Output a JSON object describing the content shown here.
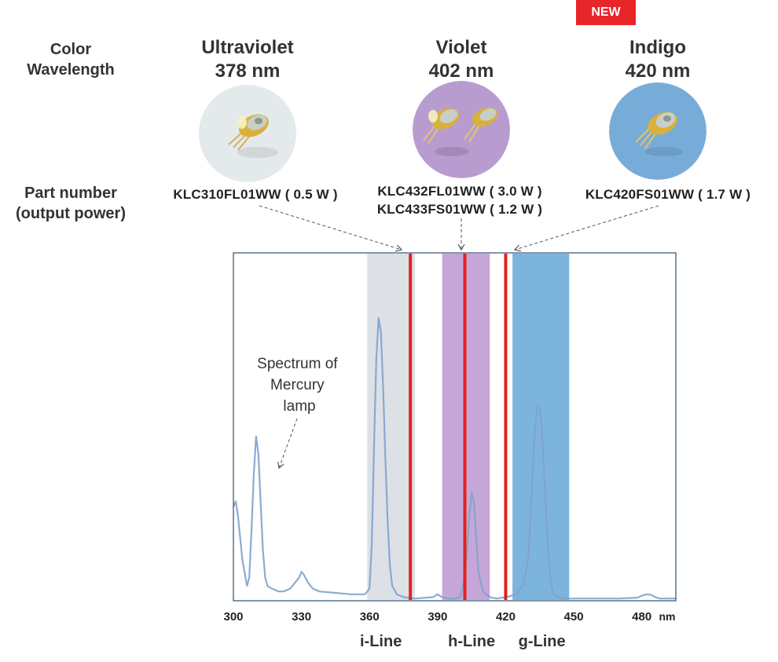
{
  "badge": {
    "new_label": "NEW"
  },
  "rows": {
    "color_label_1": "Color",
    "color_label_2": "Wavelength",
    "part_label_1": "Part number",
    "part_label_2": "(output power)"
  },
  "lasers": [
    {
      "name": "Ultraviolet",
      "wavelength": "378 nm",
      "parts": [
        "KLC310FL01WW ( 0.5 W )"
      ],
      "circle_color": "#e4e9ec"
    },
    {
      "name": "Violet",
      "wavelength": "402 nm",
      "parts": [
        "KLC432FL01WW ( 3.0 W )",
        "KLC433FS01WW ( 1.2 W )"
      ],
      "circle_color": "#b99ccf"
    },
    {
      "name": "Indigo",
      "wavelength": "420 nm",
      "parts": [
        "KLC420FS01WW ( 1.7 W )"
      ],
      "circle_color": "#78acd8"
    }
  ],
  "chart_data": {
    "type": "line",
    "title": "",
    "xlabel": "nm",
    "ylabel": "",
    "xlim": [
      300,
      495
    ],
    "ylim": [
      0,
      1
    ],
    "x_ticks": [
      300,
      330,
      360,
      390,
      420,
      450,
      480
    ],
    "grid": false,
    "annotation": "Spectrum of Mercury lamp",
    "series": [
      {
        "name": "",
        "color": "#7fa3cc",
        "x": [
          300,
          301,
          302,
          304,
          306,
          307,
          308,
          309,
          310,
          311,
          312,
          313,
          314,
          315,
          317,
          320,
          322,
          325,
          327,
          329,
          330,
          331,
          333,
          335,
          338,
          345,
          352,
          358,
          360,
          361,
          362,
          363,
          364,
          365,
          366,
          367,
          368,
          369,
          370,
          372,
          375,
          380,
          385,
          388,
          390,
          392,
          395,
          398,
          400,
          402,
          403,
          404,
          405,
          406,
          407,
          408,
          410,
          413,
          416,
          420,
          425,
          428,
          430,
          431,
          432,
          433,
          434,
          435,
          436,
          437,
          438,
          439,
          440,
          441,
          443,
          446,
          450,
          460,
          470,
          478,
          480,
          482,
          484,
          486,
          488,
          490,
          495
        ],
        "y": [
          0.33,
          0.35,
          0.3,
          0.14,
          0.05,
          0.08,
          0.25,
          0.45,
          0.58,
          0.52,
          0.35,
          0.18,
          0.08,
          0.05,
          0.04,
          0.03,
          0.03,
          0.04,
          0.06,
          0.08,
          0.1,
          0.09,
          0.06,
          0.04,
          0.03,
          0.025,
          0.02,
          0.02,
          0.04,
          0.2,
          0.55,
          0.86,
          1.0,
          0.95,
          0.75,
          0.5,
          0.28,
          0.12,
          0.05,
          0.02,
          0.01,
          0.005,
          0.008,
          0.01,
          0.02,
          0.01,
          0.005,
          0.005,
          0.01,
          0.08,
          0.18,
          0.3,
          0.38,
          0.35,
          0.22,
          0.1,
          0.03,
          0.01,
          0.005,
          0.01,
          0.02,
          0.06,
          0.15,
          0.3,
          0.48,
          0.62,
          0.69,
          0.68,
          0.6,
          0.45,
          0.28,
          0.14,
          0.06,
          0.02,
          0.01,
          0.005,
          0.005,
          0.005,
          0.005,
          0.008,
          0.015,
          0.02,
          0.018,
          0.01,
          0.005,
          0.005,
          0.005
        ]
      }
    ],
    "bands": [
      {
        "label": "i-Line",
        "from": 359,
        "to": 380,
        "color": "#dde1e6"
      },
      {
        "label": "h-Line",
        "from": 392,
        "to": 413,
        "color": "#c6a6d8"
      },
      {
        "label": "",
        "from": 423,
        "to": 448,
        "color": "#7db4de"
      }
    ],
    "band_labels": [
      {
        "label": "i-Line",
        "x": 365
      },
      {
        "label": "h-Line",
        "x": 405
      },
      {
        "label": "g-Line",
        "x": 436
      }
    ],
    "laser_lines": [
      {
        "x": 378,
        "color": "#e2231a"
      },
      {
        "x": 402,
        "color": "#e2231a"
      },
      {
        "x": 420,
        "color": "#e2231a"
      }
    ]
  }
}
